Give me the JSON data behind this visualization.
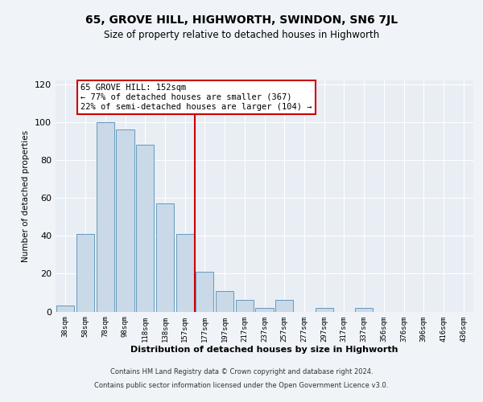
{
  "title": "65, GROVE HILL, HIGHWORTH, SWINDON, SN6 7JL",
  "subtitle": "Size of property relative to detached houses in Highworth",
  "xlabel": "Distribution of detached houses by size in Highworth",
  "ylabel": "Number of detached properties",
  "bar_labels": [
    "38sqm",
    "58sqm",
    "78sqm",
    "98sqm",
    "118sqm",
    "138sqm",
    "157sqm",
    "177sqm",
    "197sqm",
    "217sqm",
    "237sqm",
    "257sqm",
    "277sqm",
    "297sqm",
    "317sqm",
    "337sqm",
    "356sqm",
    "376sqm",
    "396sqm",
    "416sqm",
    "436sqm"
  ],
  "bar_values": [
    3,
    41,
    100,
    96,
    88,
    57,
    41,
    21,
    11,
    6,
    2,
    6,
    0,
    2,
    0,
    2,
    0,
    0,
    0,
    0,
    0
  ],
  "bar_color": "#c9d9e8",
  "bar_edge_color": "#6699bb",
  "vline_color": "#cc0000",
  "vline_pos": 6.5,
  "annotation_text": "65 GROVE HILL: 152sqm\n← 77% of detached houses are smaller (367)\n22% of semi-detached houses are larger (104) →",
  "annotation_box_facecolor": "#ffffff",
  "annotation_box_edgecolor": "#cc0000",
  "ylim": [
    0,
    122
  ],
  "yticks": [
    0,
    20,
    40,
    60,
    80,
    100,
    120
  ],
  "fig_facecolor": "#f0f4f8",
  "plot_facecolor": "#e8eef4",
  "footer_line1": "Contains HM Land Registry data © Crown copyright and database right 2024.",
  "footer_line2": "Contains public sector information licensed under the Open Government Licence v3.0."
}
